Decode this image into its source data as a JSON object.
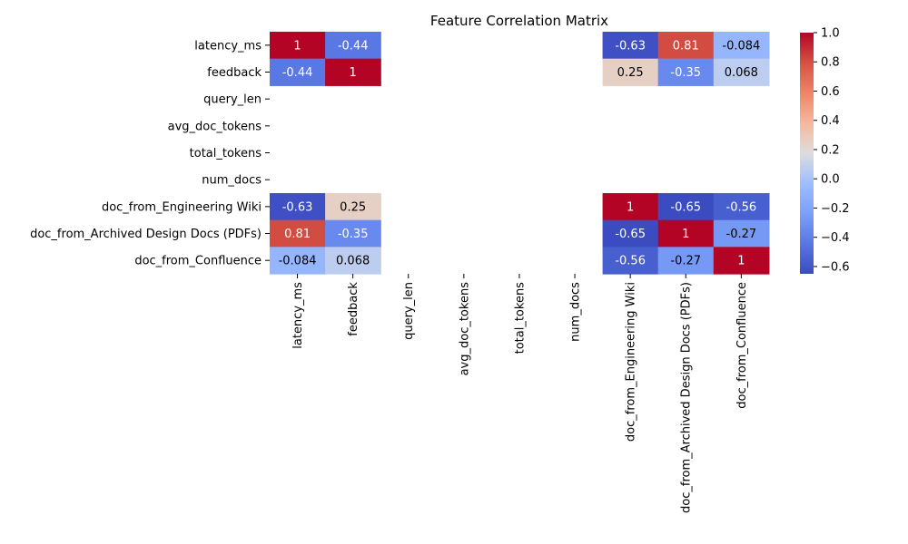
{
  "chart_data": {
    "type": "heatmap",
    "title": "Feature Correlation Matrix",
    "xlabel": "",
    "ylabel": "",
    "rows": [
      "latency_ms",
      "feedback",
      "query_len",
      "avg_doc_tokens",
      "total_tokens",
      "num_docs",
      "doc_from_Engineering Wiki",
      "doc_from_Archived Design Docs (PDFs)",
      "doc_from_Confluence"
    ],
    "columns": [
      "latency_ms",
      "feedback",
      "query_len",
      "avg_doc_tokens",
      "total_tokens",
      "num_docs",
      "doc_from_Engineering Wiki",
      "doc_from_Archived Design Docs (PDFs)",
      "doc_from_Confluence"
    ],
    "values": [
      [
        1,
        -0.44,
        null,
        null,
        null,
        null,
        -0.63,
        0.81,
        -0.084
      ],
      [
        -0.44,
        1,
        null,
        null,
        null,
        null,
        0.25,
        -0.35,
        0.068
      ],
      [
        null,
        null,
        null,
        null,
        null,
        null,
        null,
        null,
        null
      ],
      [
        null,
        null,
        null,
        null,
        null,
        null,
        null,
        null,
        null
      ],
      [
        null,
        null,
        null,
        null,
        null,
        null,
        null,
        null,
        null
      ],
      [
        null,
        null,
        null,
        null,
        null,
        null,
        null,
        null,
        null
      ],
      [
        -0.63,
        0.25,
        null,
        null,
        null,
        null,
        1,
        -0.65,
        -0.56
      ],
      [
        0.81,
        -0.35,
        null,
        null,
        null,
        null,
        -0.65,
        1,
        -0.27
      ],
      [
        -0.084,
        0.068,
        null,
        null,
        null,
        null,
        -0.56,
        -0.27,
        1
      ]
    ],
    "annotations": [
      [
        "1",
        "-0.44",
        "",
        "",
        "",
        "",
        "-0.63",
        "0.81",
        "-0.084"
      ],
      [
        "-0.44",
        "1",
        "",
        "",
        "",
        "",
        "0.25",
        "-0.35",
        "0.068"
      ],
      [
        "",
        "",
        "",
        "",
        "",
        "",
        "",
        "",
        ""
      ],
      [
        "",
        "",
        "",
        "",
        "",
        "",
        "",
        "",
        ""
      ],
      [
        "",
        "",
        "",
        "",
        "",
        "",
        "",
        "",
        ""
      ],
      [
        "",
        "",
        "",
        "",
        "",
        "",
        "",
        "",
        ""
      ],
      [
        "-0.63",
        "0.25",
        "",
        "",
        "",
        "",
        "1",
        "-0.65",
        "-0.56"
      ],
      [
        "0.81",
        "-0.35",
        "",
        "",
        "",
        "",
        "-0.65",
        "1",
        "-0.27"
      ],
      [
        "-0.084",
        "0.068",
        "",
        "",
        "",
        "",
        "-0.56",
        "-0.27",
        "1"
      ]
    ],
    "colormap": "coolwarm",
    "vmin": -0.65,
    "vmax": 1.0,
    "colorbar": {
      "ticks": [
        1.0,
        0.8,
        0.6,
        0.4,
        0.2,
        0.0,
        -0.2,
        -0.4,
        -0.6
      ],
      "tick_labels": [
        "1.0",
        "0.8",
        "0.6",
        "0.4",
        "0.2",
        "0.0",
        "−0.2",
        "−0.4",
        "−0.6"
      ],
      "placement": "right"
    },
    "grid": false
  }
}
